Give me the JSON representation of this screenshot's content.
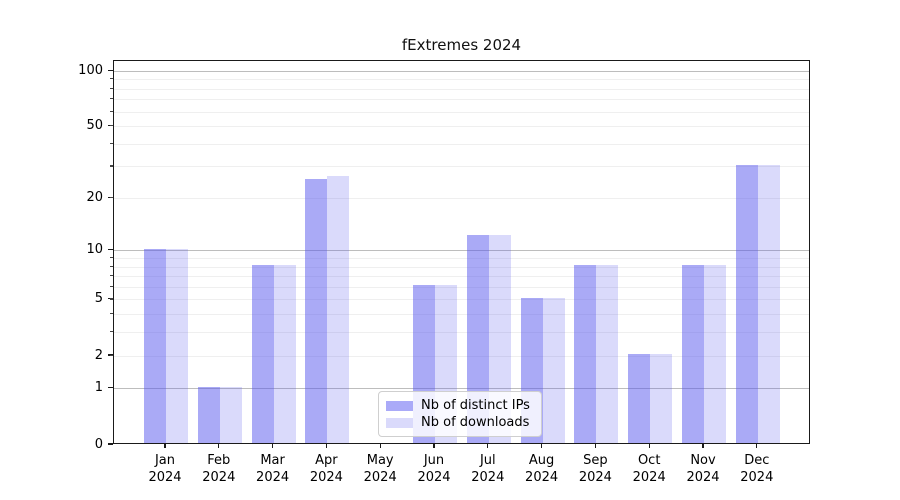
{
  "title": "fExtremes 2024",
  "year_label": "2024",
  "chart_data": {
    "type": "bar",
    "title": "fExtremes 2024",
    "categories": [
      "Jan",
      "Feb",
      "Mar",
      "Apr",
      "May",
      "Jun",
      "Jul",
      "Aug",
      "Sep",
      "Oct",
      "Nov",
      "Dec"
    ],
    "category_year": "2024",
    "series": [
      {
        "name": "Nb of distinct IPs",
        "color": "#aaaaf8",
        "rgba": "rgba(85,85,238,0.50)",
        "values": [
          10,
          1,
          8,
          25,
          0,
          6,
          12,
          5,
          8,
          2,
          8,
          30
        ]
      },
      {
        "name": "Nb of downloads",
        "color": "#dadafb",
        "rgba": "rgba(85,85,238,0.22)",
        "values": [
          10,
          1,
          8,
          26,
          0,
          6,
          12,
          5,
          8,
          2,
          8,
          30
        ]
      }
    ],
    "xlabel": "",
    "ylabel": "",
    "y_axis": {
      "scale": "log1p",
      "tick_labels": [
        "0",
        "1",
        "2",
        "5",
        "10",
        "20",
        "50",
        "100"
      ],
      "tick_values": [
        0,
        1,
        2,
        5,
        10,
        20,
        50,
        100
      ],
      "major_gridlines": [
        1,
        10,
        100
      ],
      "minor_gridlines": [
        2,
        3,
        4,
        5,
        6,
        7,
        8,
        9,
        20,
        30,
        40,
        50,
        60,
        70,
        80,
        90
      ],
      "ylim": [
        0,
        110
      ],
      "grid": "on"
    },
    "legend": {
      "position": "bottom-center",
      "entries": [
        "Nb of distinct IPs",
        "Nb of downloads"
      ]
    }
  }
}
